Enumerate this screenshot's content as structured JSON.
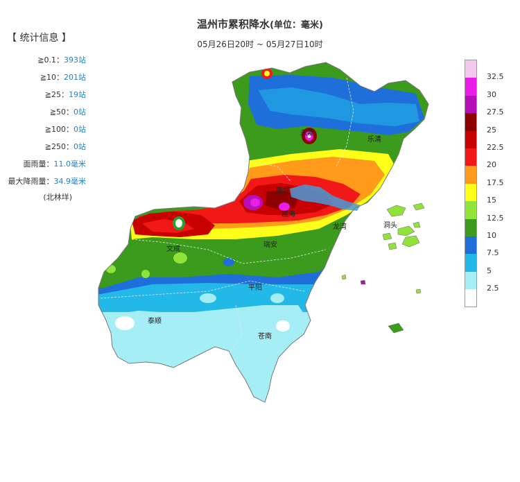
{
  "title": "温州市累积降水",
  "title_unit": "(单位：毫米)",
  "time_range": "05月26日20时 ~ 05月27日10时",
  "stats": {
    "heading": "【 统计信息 】",
    "rows": [
      {
        "label": "≧0.1：",
        "value": "393站"
      },
      {
        "label": "≧10：",
        "value": "201站"
      },
      {
        "label": "≧25：",
        "value": "19站"
      },
      {
        "label": "≧50：",
        "value": "0站"
      },
      {
        "label": "≧100：",
        "value": "0站"
      },
      {
        "label": "≧250：",
        "value": "0站"
      },
      {
        "label": "面雨量：",
        "value": "11.0毫米"
      },
      {
        "label": "最大降雨量：",
        "value": "34.9毫米"
      }
    ],
    "note": "(北林垟)"
  },
  "places": [
    "永嘉",
    "乐清",
    "鹿城",
    "瓯海",
    "龙湾",
    "洞头",
    "文成",
    "瑞安",
    "平阳",
    "泰顺",
    "苍南"
  ],
  "legend": {
    "labels": [
      "32.5",
      "30",
      "27.5",
      "25",
      "22.5",
      "20",
      "17.5",
      "15",
      "12.5",
      "10",
      "7.5",
      "5",
      "2.5"
    ],
    "colors": [
      "#f5c8f0",
      "#ea1ee8",
      "#b60fb8",
      "#8c0000",
      "#c80000",
      "#f21818",
      "#ff9a1a",
      "#ffff1a",
      "#8fe33a",
      "#3c9a1c",
      "#1e6fd9",
      "#22b9e8",
      "#a6eef5",
      "#ffffff"
    ]
  }
}
